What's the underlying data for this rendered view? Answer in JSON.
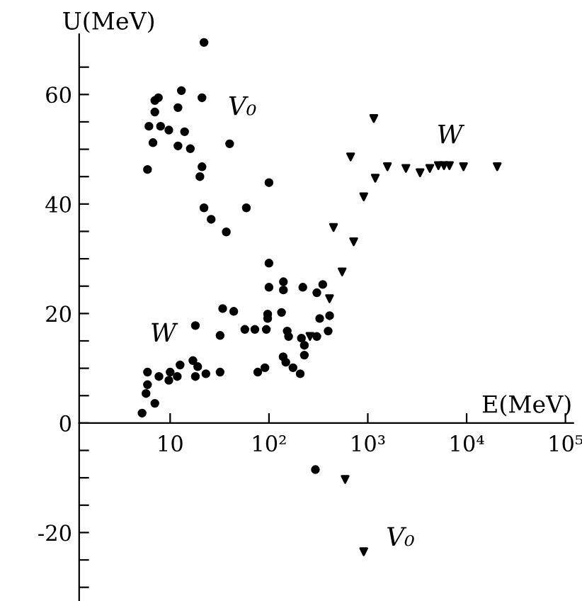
{
  "chart_data": {
    "type": "scatter",
    "xlabel": "E(MeV)",
    "ylabel": "U(MeV)",
    "log": "x",
    "grid": false,
    "legend": false,
    "xlim": [
      1.2,
      120000
    ],
    "ylim": [
      -32.5,
      71
    ],
    "xticks": [
      10,
      {
        "value": 100,
        "label": "10²"
      },
      {
        "value": 1000,
        "label": "10³"
      },
      {
        "value": 10000,
        "label": "10⁴"
      },
      {
        "value": 100000,
        "label": "10⁵"
      }
    ],
    "yticks": [
      {
        "value": -30,
        "label": null
      },
      {
        "value": -25,
        "label": null
      },
      -20,
      {
        "value": -15,
        "label": null
      },
      {
        "value": -10,
        "label": null
      },
      {
        "value": -5,
        "label": null
      },
      0,
      {
        "value": 5,
        "label": null
      },
      {
        "value": 10,
        "label": null
      },
      {
        "value": 15,
        "label": null
      },
      20,
      {
        "value": 25,
        "label": null
      },
      {
        "value": 30,
        "label": null
      },
      {
        "value": 35,
        "label": null
      },
      40,
      {
        "value": 45,
        "label": null
      },
      {
        "value": 50,
        "label": null
      },
      {
        "value": 55,
        "label": null
      },
      60,
      {
        "value": 65,
        "label": null
      }
    ],
    "series": [
      {
        "marker": "circle",
        "color": "#000000",
        "x": [
          22,
          7,
          7.6,
          13,
          21,
          7,
          12,
          6.1,
          8,
          9.7,
          14,
          6.7,
          12,
          16,
          40,
          5.9,
          21,
          20,
          100,
          22,
          26,
          59,
          37,
          100,
          100,
          140,
          140,
          220,
          350,
          5.2,
          5.7,
          5.9,
          5.9,
          7,
          7.7,
          9.7,
          10,
          12.6,
          11.8,
          17,
          18,
          19,
          23,
          18,
          32,
          32,
          34,
          44,
          57,
          72,
          77,
          91,
          94,
          97,
          97,
          134,
          139,
          148,
          158,
          153,
          175,
          207,
          213,
          228,
          228,
          305,
          326,
          397,
          411,
          305,
          295
        ],
        "values": [
          69.5,
          58.9,
          59.4,
          60.7,
          59.4,
          56.8,
          57.6,
          54.2,
          54.2,
          53.5,
          53.2,
          51.2,
          50.6,
          50.1,
          51,
          46.3,
          46.8,
          45,
          43.9,
          39.3,
          37.2,
          39.3,
          34.9,
          29.2,
          24.8,
          25.8,
          24.3,
          24.8,
          25.3,
          1.8,
          5.4,
          7,
          9.3,
          3.6,
          8.5,
          7.8,
          9.3,
          10.6,
          8.5,
          11.4,
          8.5,
          10.3,
          9,
          17.8,
          9.3,
          16,
          20.9,
          20.4,
          17.1,
          17.1,
          9.3,
          10.1,
          17.1,
          19.9,
          19.1,
          20.2,
          12.1,
          11.1,
          15.8,
          16.8,
          10.1,
          9,
          15.5,
          14.2,
          12.4,
          15.8,
          19.1,
          16.8,
          19.6,
          23.8,
          -8.5
        ]
      },
      {
        "marker": "triangle",
        "color": "#000000",
        "x": [
          260,
          410,
          1150,
          670,
          450,
          720,
          550,
          910,
          1190,
          1580,
          2430,
          3380,
          4240,
          5180,
          5900,
          6700,
          9300,
          20400,
          590,
          910
        ],
        "values": [
          15.8,
          22.7,
          55.6,
          48.6,
          35.7,
          33.1,
          27.6,
          41.3,
          44.7,
          46.8,
          46.5,
          45.7,
          46.5,
          47,
          47,
          47,
          46.8,
          46.8,
          -10.3,
          -23.5
        ]
      }
    ],
    "annotations": [
      "V₀",
      "W",
      "W",
      "V₀"
    ]
  }
}
